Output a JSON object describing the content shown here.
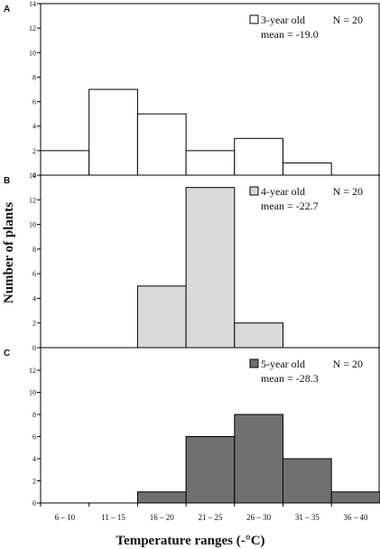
{
  "chart_data": {
    "type": "bar",
    "xlabel": "Temperature ranges (-°C)",
    "ylabel": "Number of plants",
    "categories": [
      "6 – 10",
      "11 – 15",
      "16 – 20",
      "21 – 25",
      "26 – 30",
      "31 – 35",
      "36 – 40"
    ],
    "panels": [
      {
        "letter": "A",
        "legend_label": "3-year old",
        "n_text": "N = 20",
        "mean_text": "mean = -19.0",
        "color": "#ffffff",
        "values": [
          2,
          7,
          5,
          2,
          3,
          1,
          0
        ],
        "ylim": [
          0,
          14
        ],
        "yticks": [
          0,
          2,
          4,
          6,
          8,
          10,
          12,
          14
        ]
      },
      {
        "letter": "B",
        "legend_label": "4-year old",
        "n_text": "N = 20",
        "mean_text": "mean = -22.7",
        "color": "#d9d9d9",
        "values": [
          0,
          0,
          5,
          13,
          2,
          0,
          0
        ],
        "ylim": [
          0,
          14
        ],
        "yticks": [
          0,
          2,
          4,
          6,
          8,
          10,
          12,
          14
        ]
      },
      {
        "letter": "C",
        "legend_label": "5-year old",
        "n_text": "N = 20",
        "mean_text": "mean = -28.3",
        "color": "#707070",
        "values": [
          0,
          0,
          1,
          6,
          8,
          4,
          1
        ],
        "ylim": [
          0,
          14
        ],
        "yticks": [
          0,
          2,
          4,
          6,
          8,
          10,
          12
        ]
      }
    ]
  }
}
